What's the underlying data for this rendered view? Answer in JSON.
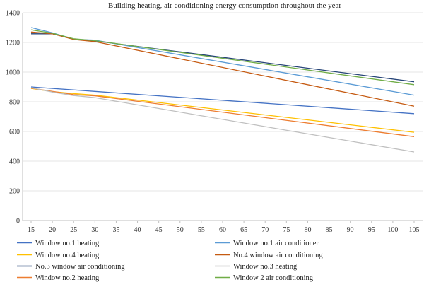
{
  "chart_data": {
    "type": "line",
    "title": "Building heating, air conditioning energy consumption throughout the year",
    "xlabel": "",
    "ylabel": "",
    "x": [
      15,
      20,
      25,
      30,
      35,
      40,
      45,
      50,
      55,
      60,
      65,
      70,
      75,
      80,
      85,
      90,
      95,
      100,
      105
    ],
    "xlim": [
      15,
      105
    ],
    "ylim": [
      0,
      1400
    ],
    "yticks": [
      0,
      200,
      400,
      600,
      800,
      1000,
      1200,
      1400
    ],
    "grid": true,
    "legend_position": "bottom",
    "series": [
      {
        "name": "Window no.1 heating",
        "color": "#4472C4",
        "x": [
          15,
          105
        ],
        "y": [
          900,
          720
        ]
      },
      {
        "name": "Window no.4 heating",
        "color": "#FFC000",
        "x": [
          15,
          20,
          25,
          30,
          105
        ],
        "y": [
          890,
          868,
          855,
          845,
          595
        ]
      },
      {
        "name": "No.3 window air conditioning",
        "color": "#264478",
        "x": [
          15,
          20,
          25,
          30,
          105
        ],
        "y": [
          1258,
          1258,
          1222,
          1210,
          935
        ]
      },
      {
        "name": "Window no.2 heating",
        "color": "#ED7D31",
        "x": [
          15,
          20,
          25,
          30,
          105
        ],
        "y": [
          892,
          870,
          848,
          840,
          565
        ]
      },
      {
        "name": "Window no.1 air conditioner",
        "color": "#5B9BD5",
        "x": [
          15,
          20,
          25,
          30,
          105
        ],
        "y": [
          1300,
          1265,
          1222,
          1215,
          845
        ]
      },
      {
        "name": "No.4 window air conditioning",
        "color": "#C55A11",
        "x": [
          15,
          20,
          25,
          30,
          105
        ],
        "y": [
          1270,
          1258,
          1220,
          1205,
          770
        ]
      },
      {
        "name": "Window no.3 heating",
        "color": "#BFBFBF",
        "x": [
          15,
          20,
          25,
          30,
          105
        ],
        "y": [
          895,
          865,
          842,
          828,
          462
        ]
      },
      {
        "name": "Window 2 air conditioning",
        "color": "#70AD47",
        "x": [
          15,
          20,
          25,
          30,
          105
        ],
        "y": [
          1285,
          1262,
          1225,
          1212,
          915
        ]
      }
    ]
  }
}
